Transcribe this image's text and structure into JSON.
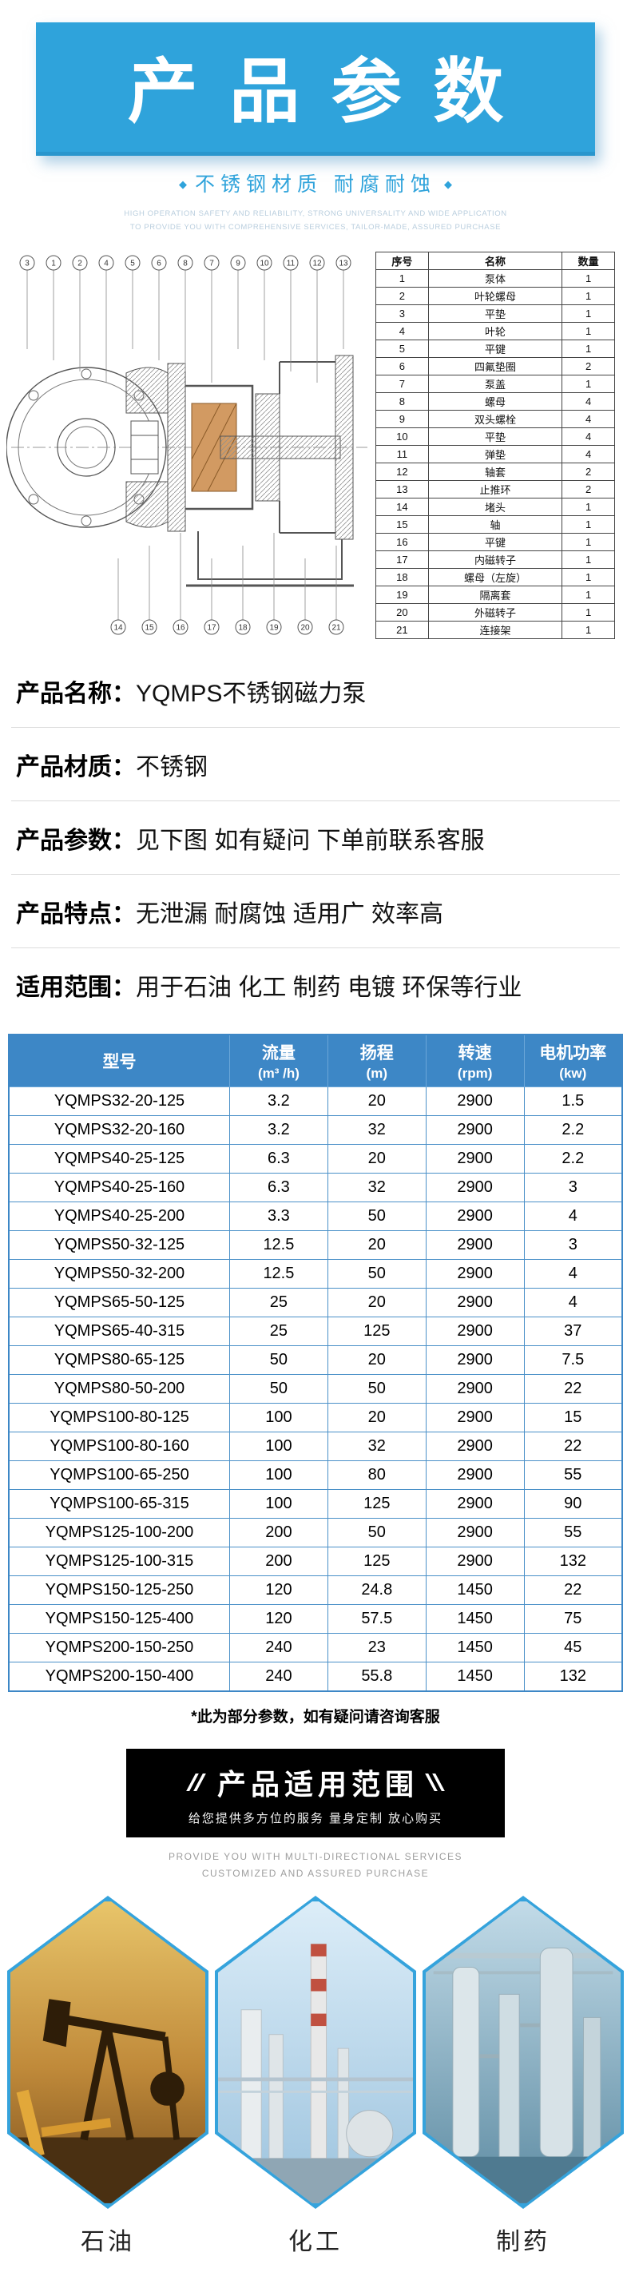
{
  "header": {
    "title": "产品参数",
    "subtitle": "不锈钢材质 耐腐耐蚀",
    "english_line1": "HIGH OPERATION SAFETY AND RELIABILITY, STRONG UNIVERSALITY AND WIDE APPLICATION",
    "english_line2": "TO PROVIDE YOU WITH COMPREHENSIVE SERVICES, TAILOR-MADE, ASSURED PURCHASE"
  },
  "diagram": {
    "callouts_top": [
      "3",
      "1",
      "2",
      "4",
      "5",
      "6",
      "8",
      "7",
      "9",
      "10",
      "11",
      "12",
      "13"
    ],
    "callouts_bottom": [
      "14",
      "15",
      "16",
      "17",
      "18",
      "19",
      "20",
      "21"
    ]
  },
  "parts_table": {
    "headers": [
      "序号",
      "名称",
      "数量"
    ],
    "rows": [
      [
        "1",
        "泵体",
        "1"
      ],
      [
        "2",
        "叶轮螺母",
        "1"
      ],
      [
        "3",
        "平垫",
        "1"
      ],
      [
        "4",
        "叶轮",
        "1"
      ],
      [
        "5",
        "平键",
        "1"
      ],
      [
        "6",
        "四氟垫圈",
        "2"
      ],
      [
        "7",
        "泵盖",
        "1"
      ],
      [
        "8",
        "螺母",
        "4"
      ],
      [
        "9",
        "双头螺栓",
        "4"
      ],
      [
        "10",
        "平垫",
        "4"
      ],
      [
        "11",
        "弹垫",
        "4"
      ],
      [
        "12",
        "轴套",
        "2"
      ],
      [
        "13",
        "止推环",
        "2"
      ],
      [
        "14",
        "堵头",
        "1"
      ],
      [
        "15",
        "轴",
        "1"
      ],
      [
        "16",
        "平键",
        "1"
      ],
      [
        "17",
        "内磁转子",
        "1"
      ],
      [
        "18",
        "螺母（左旋）",
        "1"
      ],
      [
        "19",
        "隔离套",
        "1"
      ],
      [
        "20",
        "外磁转子",
        "1"
      ],
      [
        "21",
        "连接架",
        "1"
      ]
    ]
  },
  "info_sections": [
    {
      "label": "产品名称：",
      "value": "YQMPS不锈钢磁力泵"
    },
    {
      "label": "产品材质：",
      "value": "不锈钢"
    },
    {
      "label": "产品参数：",
      "value": "见下图 如有疑问 下单前联系客服"
    },
    {
      "label": "产品特点：",
      "value": "无泄漏 耐腐蚀 适用广 效率高"
    },
    {
      "label": "适用范围：",
      "value": "用于石油 化工 制药 电镀 环保等行业"
    }
  ],
  "spec_table": {
    "headers": [
      {
        "line1": "型号",
        "line2": ""
      },
      {
        "line1": "流量",
        "line2": "(m³ /h)"
      },
      {
        "line1": "扬程",
        "line2": "(m)"
      },
      {
        "line1": "转速",
        "line2": "(rpm)"
      },
      {
        "line1": "电机功率",
        "line2": "(kw)"
      }
    ],
    "rows": [
      [
        "YQMPS32-20-125",
        "3.2",
        "20",
        "2900",
        "1.5"
      ],
      [
        "YQMPS32-20-160",
        "3.2",
        "32",
        "2900",
        "2.2"
      ],
      [
        "YQMPS40-25-125",
        "6.3",
        "20",
        "2900",
        "2.2"
      ],
      [
        "YQMPS40-25-160",
        "6.3",
        "32",
        "2900",
        "3"
      ],
      [
        "YQMPS40-25-200",
        "3.3",
        "50",
        "2900",
        "4"
      ],
      [
        "YQMPS50-32-125",
        "12.5",
        "20",
        "2900",
        "3"
      ],
      [
        "YQMPS50-32-200",
        "12.5",
        "50",
        "2900",
        "4"
      ],
      [
        "YQMPS65-50-125",
        "25",
        "20",
        "2900",
        "4"
      ],
      [
        "YQMPS65-40-315",
        "25",
        "125",
        "2900",
        "37"
      ],
      [
        "YQMPS80-65-125",
        "50",
        "20",
        "2900",
        "7.5"
      ],
      [
        "YQMPS80-50-200",
        "50",
        "50",
        "2900",
        "22"
      ],
      [
        "YQMPS100-80-125",
        "100",
        "20",
        "2900",
        "15"
      ],
      [
        "YQMPS100-80-160",
        "100",
        "32",
        "2900",
        "22"
      ],
      [
        "YQMPS100-65-250",
        "100",
        "80",
        "2900",
        "55"
      ],
      [
        "YQMPS100-65-315",
        "100",
        "125",
        "2900",
        "90"
      ],
      [
        "YQMPS125-100-200",
        "200",
        "50",
        "2900",
        "55"
      ],
      [
        "YQMPS125-100-315",
        "200",
        "125",
        "2900",
        "132"
      ],
      [
        "YQMPS150-125-250",
        "120",
        "24.8",
        "1450",
        "22"
      ],
      [
        "YQMPS150-125-400",
        "120",
        "57.5",
        "1450",
        "75"
      ],
      [
        "YQMPS200-150-250",
        "240",
        "23",
        "1450",
        "45"
      ],
      [
        "YQMPS200-150-400",
        "240",
        "55.8",
        "1450",
        "132"
      ]
    ]
  },
  "note": "*此为部分参数，如有疑问请咨询客服",
  "banner": {
    "title": "产品适用范围",
    "subtitle": "给您提供多方位的服务 量身定制 放心购买",
    "english_line1": "PROVIDE YOU WITH MULTI-DIRECTIONAL SERVICES",
    "english_line2": "CUSTOMIZED AND ASSURED PURCHASE"
  },
  "applications": [
    {
      "label": "石油"
    },
    {
      "label": "化工"
    },
    {
      "label": "制药"
    }
  ],
  "colors": {
    "accent_blue": "#2fa3db",
    "table_header_blue": "#3d87c6",
    "banner_black": "#000000"
  }
}
